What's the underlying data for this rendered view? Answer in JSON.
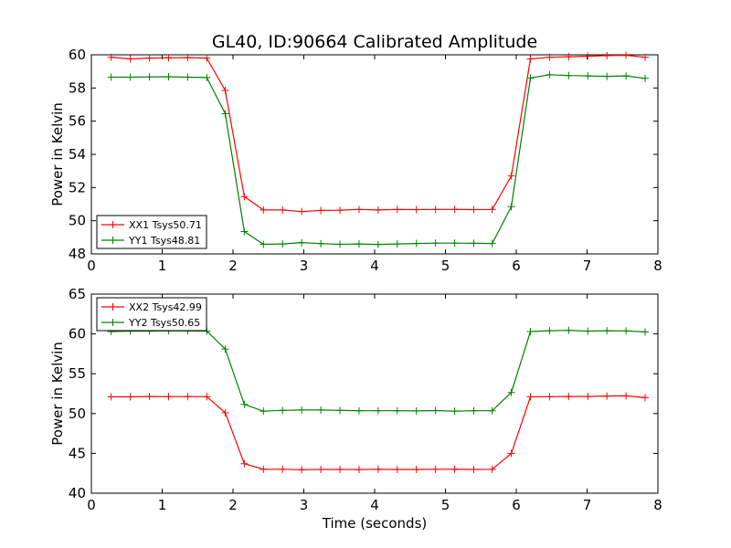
{
  "figure": {
    "title": "GL40, ID:90664 Calibrated Amplitude"
  },
  "chart_data": [
    {
      "type": "line",
      "title": "GL40, ID:90664 Calibrated Amplitude",
      "xlabel": "",
      "ylabel": "Power in Kelvin",
      "xlim": [
        0,
        8
      ],
      "ylim": [
        48,
        60
      ],
      "xticks": [
        "0",
        "1",
        "2",
        "3",
        "4",
        "5",
        "6",
        "7",
        "8"
      ],
      "yticks": [
        "48",
        "50",
        "52",
        "54",
        "56",
        "58",
        "60"
      ],
      "grid": false,
      "legend": "lower-left",
      "x": [
        0.28,
        0.55,
        0.82,
        1.09,
        1.36,
        1.63,
        1.89,
        2.16,
        2.43,
        2.7,
        2.97,
        3.24,
        3.51,
        3.78,
        4.05,
        4.32,
        4.59,
        4.86,
        5.13,
        5.4,
        5.66,
        5.93,
        6.2,
        6.47,
        6.74,
        7.01,
        7.28,
        7.55,
        7.82
      ],
      "series": [
        {
          "name": "XX1 Tsys50.71",
          "color": "#ff0000",
          "values": [
            59.85,
            59.75,
            59.8,
            59.82,
            59.83,
            59.8,
            57.85,
            51.45,
            50.65,
            50.65,
            50.55,
            50.62,
            50.63,
            50.68,
            50.65,
            50.68,
            50.67,
            50.68,
            50.68,
            50.67,
            50.68,
            52.7,
            59.75,
            59.85,
            59.88,
            59.92,
            59.95,
            59.97,
            59.85
          ]
        },
        {
          "name": "YY1 Tsys48.81",
          "color": "#008000",
          "values": [
            58.65,
            58.65,
            58.67,
            58.68,
            58.65,
            58.63,
            56.45,
            49.35,
            48.58,
            48.6,
            48.68,
            48.62,
            48.58,
            48.6,
            48.57,
            48.6,
            48.63,
            48.65,
            48.65,
            48.64,
            48.63,
            50.85,
            58.6,
            58.8,
            58.75,
            58.73,
            58.7,
            58.73,
            58.58
          ]
        }
      ]
    },
    {
      "type": "line",
      "title": "",
      "xlabel": "Time (seconds)",
      "ylabel": "Power in Kelvin",
      "xlim": [
        0,
        8
      ],
      "ylim": [
        40,
        65
      ],
      "xticks": [
        "0",
        "1",
        "2",
        "3",
        "4",
        "5",
        "6",
        "7",
        "8"
      ],
      "yticks": [
        "40",
        "45",
        "50",
        "55",
        "60",
        "65"
      ],
      "grid": false,
      "legend": "upper-left",
      "x": [
        0.28,
        0.55,
        0.82,
        1.09,
        1.36,
        1.63,
        1.89,
        2.16,
        2.43,
        2.7,
        2.97,
        3.24,
        3.51,
        3.78,
        4.05,
        4.32,
        4.59,
        4.86,
        5.13,
        5.4,
        5.66,
        5.93,
        6.2,
        6.47,
        6.74,
        7.01,
        7.28,
        7.55,
        7.82
      ],
      "series": [
        {
          "name": "XX2 Tsys42.99",
          "color": "#ff0000",
          "values": [
            52.1,
            52.1,
            52.15,
            52.12,
            52.13,
            52.12,
            50.1,
            43.7,
            43.0,
            43.0,
            42.95,
            42.98,
            42.98,
            42.97,
            43.0,
            42.98,
            42.98,
            43.0,
            43.0,
            42.98,
            43.0,
            45.0,
            52.1,
            52.12,
            52.14,
            52.15,
            52.2,
            52.22,
            52.0
          ]
        },
        {
          "name": "YY2 Tsys50.65",
          "color": "#008000",
          "values": [
            60.3,
            60.35,
            60.35,
            60.4,
            60.38,
            60.35,
            58.1,
            51.15,
            50.3,
            50.4,
            50.45,
            50.45,
            50.4,
            50.35,
            50.35,
            50.35,
            50.33,
            50.38,
            50.3,
            50.35,
            50.35,
            52.65,
            60.3,
            60.4,
            60.45,
            60.35,
            60.4,
            60.38,
            60.25
          ]
        }
      ]
    }
  ]
}
